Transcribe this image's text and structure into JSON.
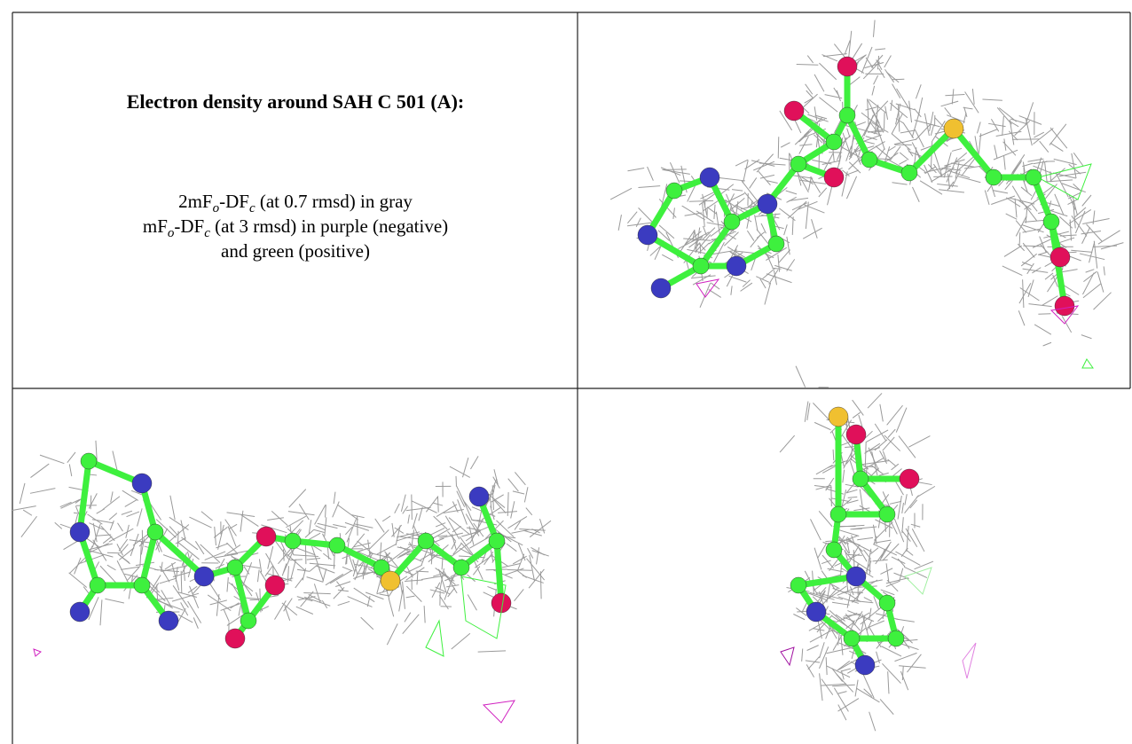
{
  "panel": {
    "title": "Electron density around SAH C 501 (A):",
    "line1": [
      "2mF",
      "o",
      "-DF",
      "c",
      " (at 0.7 rmsd) in gray"
    ],
    "line2": [
      "mF",
      "o",
      "-DF",
      "c",
      " (at 3 rmsd) in purple (negative)"
    ],
    "line3": "and green (positive)"
  }
}
